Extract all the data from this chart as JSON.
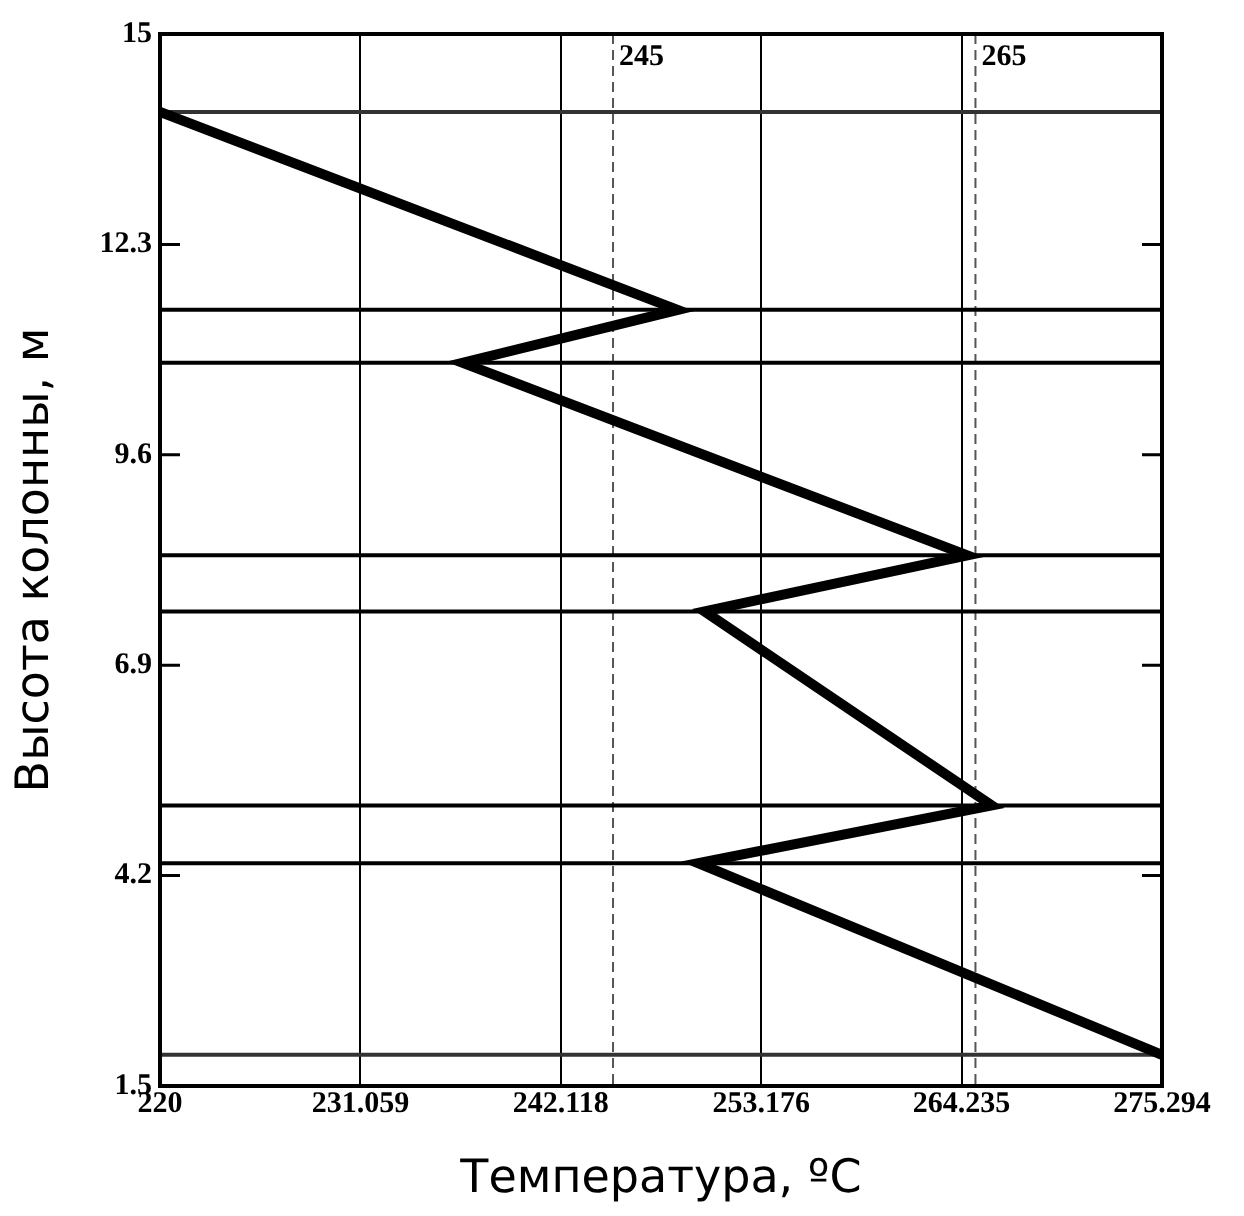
{
  "chart_data": {
    "type": "line",
    "xlabel": "Температура, ºС",
    "ylabel": "Высота колонны, м",
    "xlim": [
      220,
      275.294
    ],
    "xticks": [
      220,
      231.059,
      242.118,
      253.176,
      264.235,
      275.294
    ],
    "ylim": [
      1.5,
      15
    ],
    "yticks": [
      1.5,
      4.2,
      6.9,
      9.6,
      12.3,
      15
    ],
    "grid": "x",
    "legend": false,
    "marker": "none",
    "line_style": "solid",
    "series": [
      {
        "color": "#000000",
        "x": [
          220,
          248.57,
          236.7,
          264.55,
          250.05,
          265.9,
          249.7,
          275.29
        ],
        "values": [
          14.0,
          11.46,
          10.78,
          8.31,
          7.59,
          5.1,
          4.36,
          1.9
        ]
      }
    ],
    "ref_lines": [
      {
        "axis": "x",
        "value": 245,
        "label": "245",
        "color": "#555555",
        "line_style": "dashed"
      },
      {
        "axis": "x",
        "value": 265,
        "label": "265",
        "color": "#555555",
        "line_style": "dashed"
      },
      {
        "axis": "y",
        "value": 14.0,
        "color": "#333333",
        "line_style": "solid"
      },
      {
        "axis": "y",
        "value": 11.46,
        "color": "#000000",
        "line_style": "solid"
      },
      {
        "axis": "y",
        "value": 10.78,
        "color": "#000000",
        "line_style": "solid"
      },
      {
        "axis": "y",
        "value": 8.31,
        "color": "#000000",
        "line_style": "solid"
      },
      {
        "axis": "y",
        "value": 7.59,
        "color": "#000000",
        "line_style": "solid"
      },
      {
        "axis": "y",
        "value": 5.1,
        "color": "#000000",
        "line_style": "solid"
      },
      {
        "axis": "y",
        "value": 4.36,
        "color": "#000000",
        "line_style": "solid"
      },
      {
        "axis": "y",
        "value": 1.9,
        "color": "#333333",
        "line_style": "solid"
      }
    ]
  }
}
